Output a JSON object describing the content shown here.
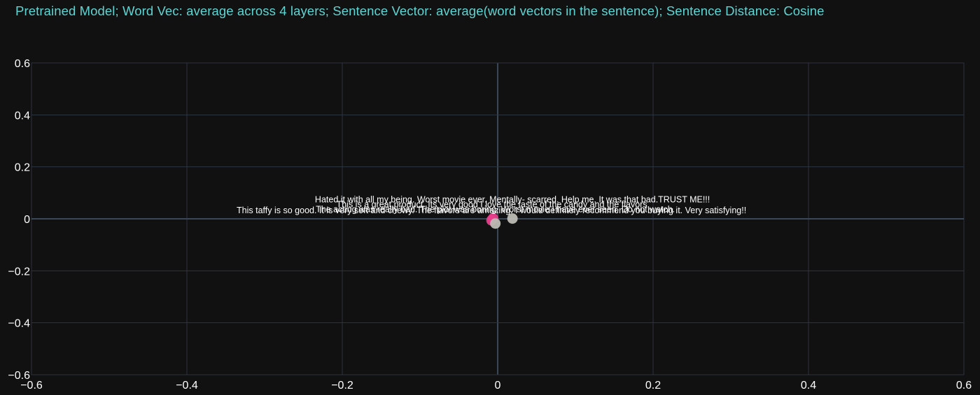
{
  "chart_data": {
    "type": "scatter",
    "title": "Pretrained Model; Word Vec: average across 4 layers; Sentence Vector: average(word vectors in the sentence); Sentence Distance: Cosine",
    "xlabel": "",
    "ylabel": "",
    "xlim": [
      -0.6,
      0.6
    ],
    "ylim": [
      -0.6,
      0.6
    ],
    "xticks": [
      -0.6,
      -0.4,
      -0.2,
      0,
      0.2,
      0.4,
      0.6
    ],
    "yticks": [
      -0.6,
      -0.4,
      -0.2,
      0,
      0.2,
      0.4,
      0.6
    ],
    "xtick_labels": [
      "−0.6",
      "−0.4",
      "−0.2",
      "0",
      "0.2",
      "0.4",
      "0.6"
    ],
    "ytick_labels": [
      "−0.6",
      "−0.4",
      "−0.2",
      "0",
      "0.2",
      "0.4",
      "0.6"
    ],
    "grid": true,
    "legend": false,
    "colors": {
      "background": "#111111",
      "grid": "#2b3440",
      "zero_line": "#3a4757",
      "title": "#5fd4d2",
      "text": "#ffffff",
      "positive_point": "#e83e8c",
      "negative_point": "#bdbdb5"
    },
    "points": [
      {
        "x": -0.008,
        "y": -0.006,
        "color": "#e83e8c",
        "label": "This taffy is so good.  It is very soft and chewy.  The flavors are amazing.  I would definitely recommend you buying it.  Very satisfying!!"
      },
      {
        "x": -0.006,
        "y": 0.002,
        "color": "#e83e8c",
        "label": "This is a great product. Its very good I love the taste of the candy and the flavors."
      },
      {
        "x": -0.003,
        "y": -0.018,
        "color": "#bdbdb5",
        "label": "The acting was really bad. The plot was boring.  Worst movie I have ever seen.  Do not watch."
      },
      {
        "x": 0.019,
        "y": 0.001,
        "color": "#bdbdb5",
        "label": "Hated it with all my being. Worst movie ever. Mentally- scarred. Help me. It was that bad.TRUST ME!!!"
      }
    ]
  }
}
